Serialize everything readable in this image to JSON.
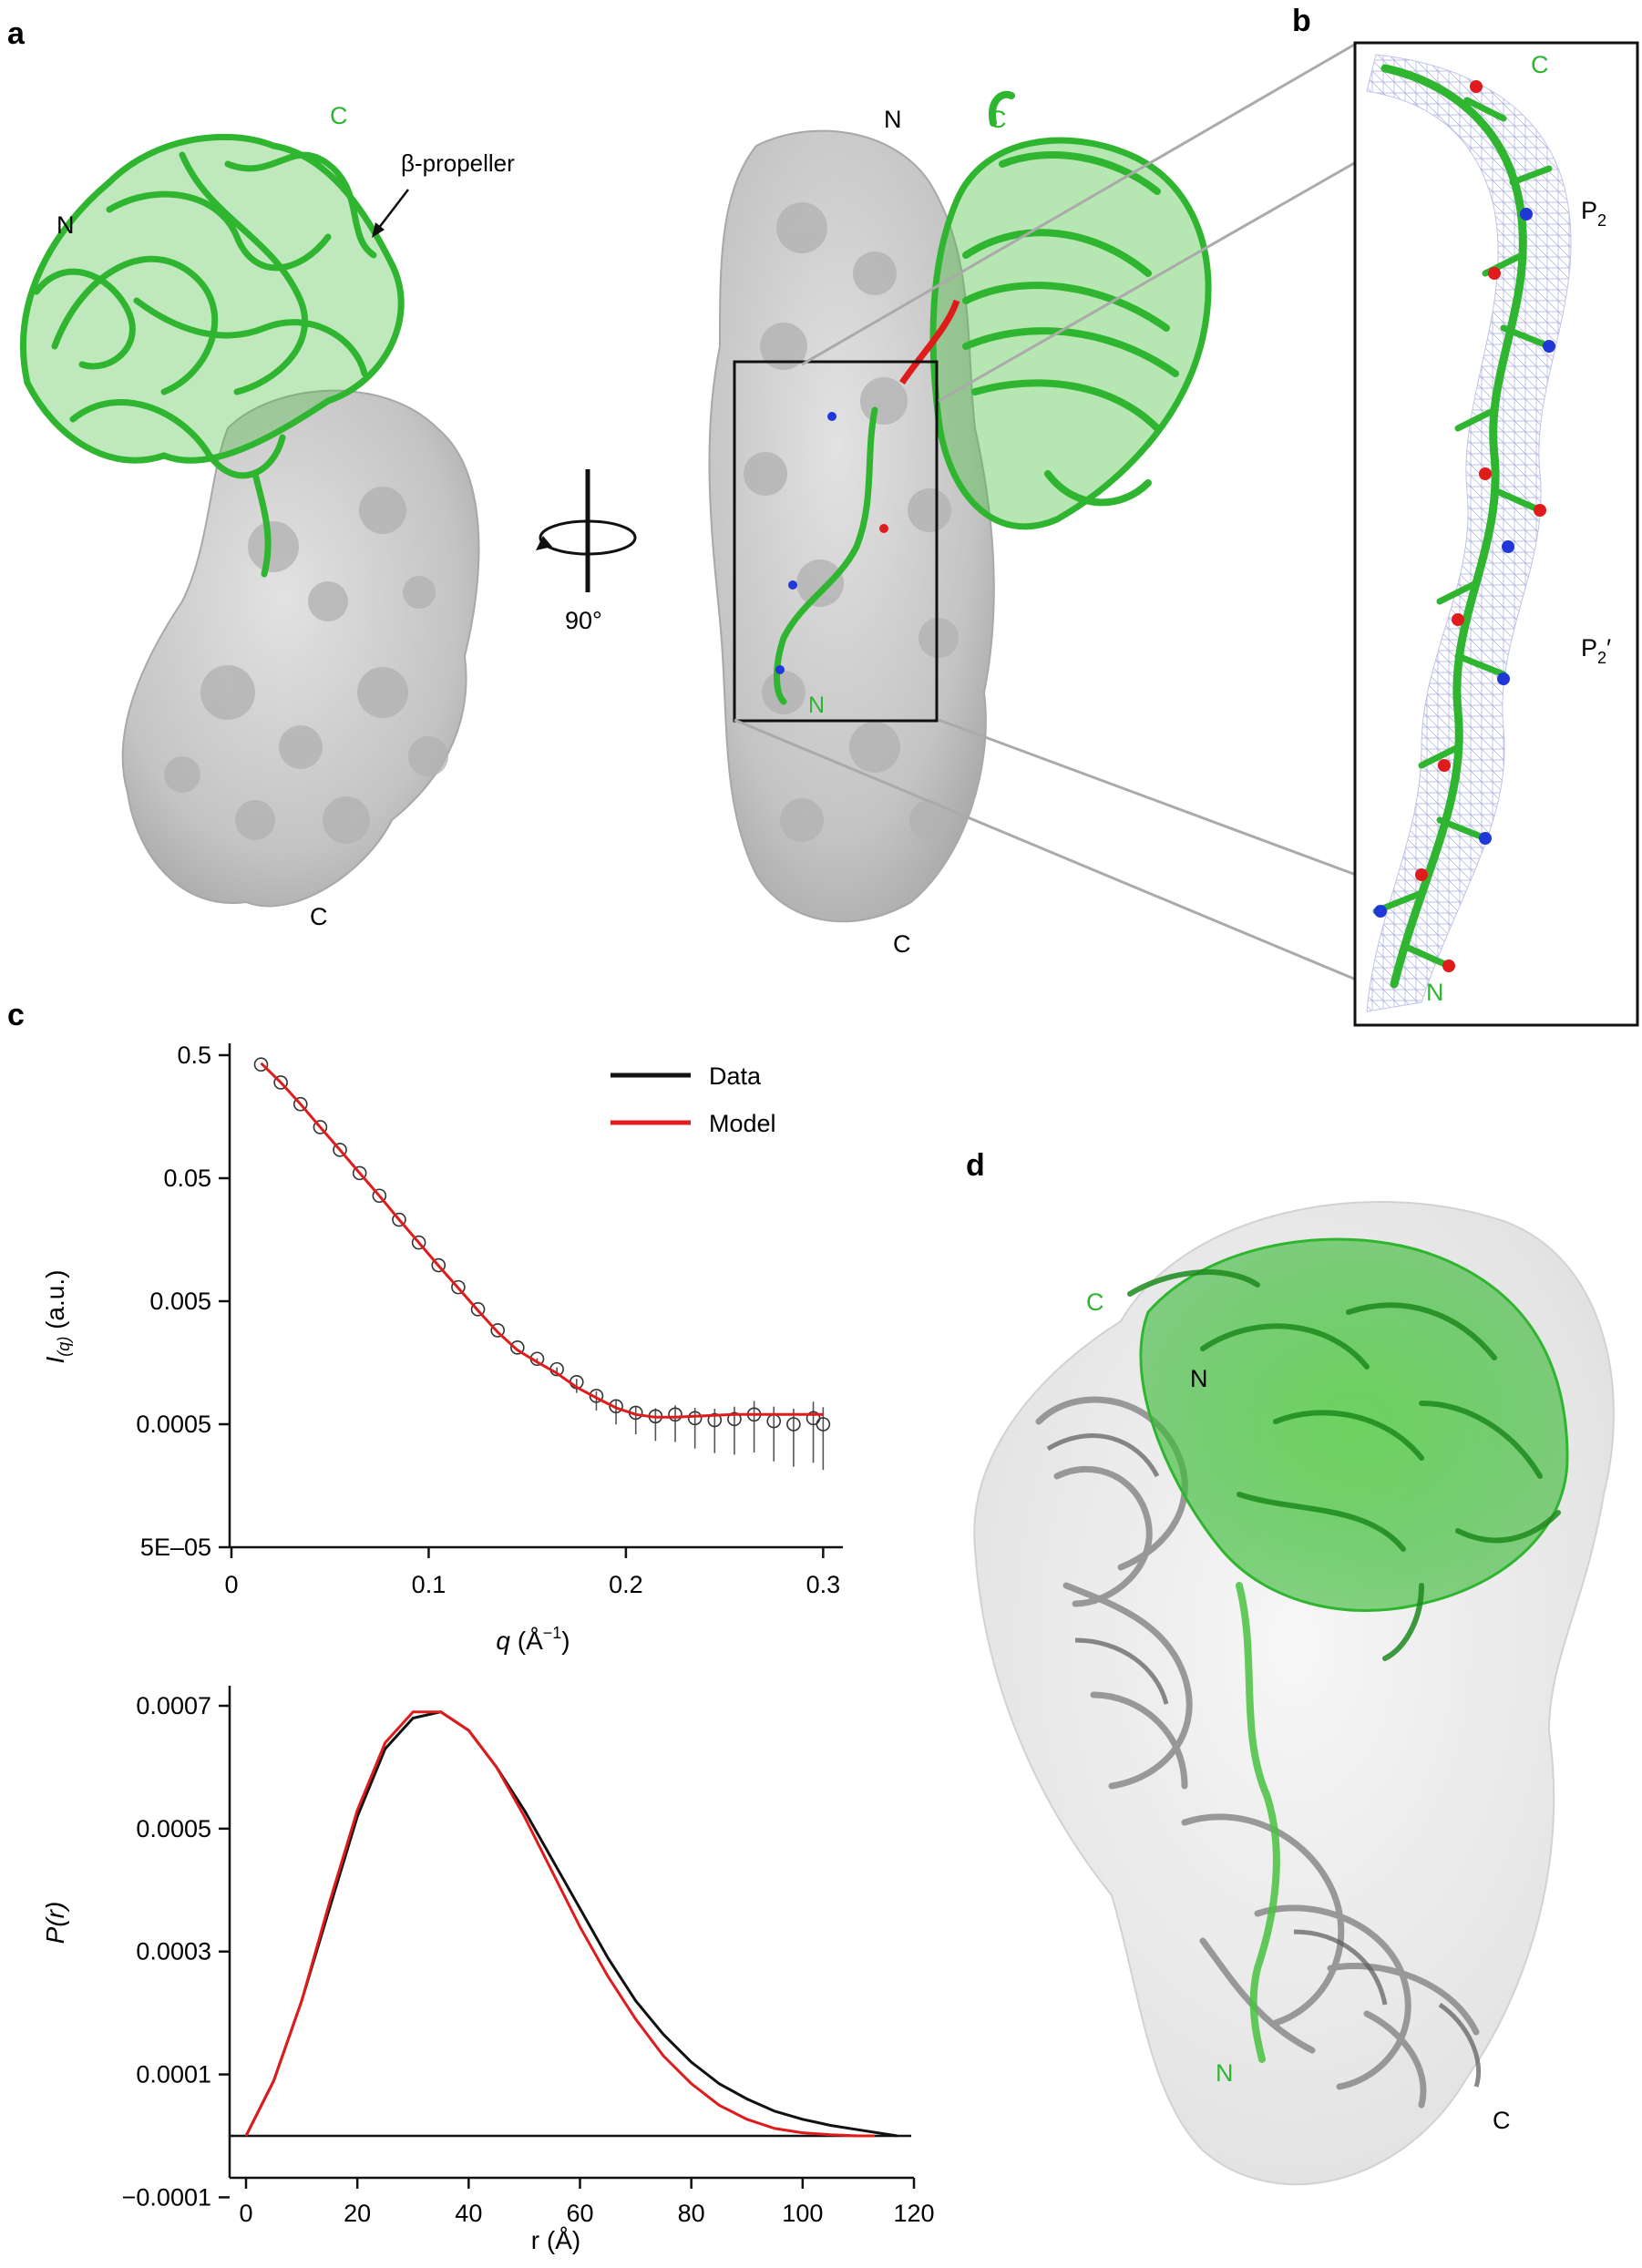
{
  "panels": {
    "a": {
      "letter": "a",
      "left_labels": {
        "n": "N",
        "c_top": "C",
        "c_bottom": "C",
        "propeller": "β-propeller"
      },
      "rotation": "90°",
      "right_labels": {
        "n": "N",
        "c_top": "C",
        "c_bottom": "C",
        "n_peptide": "N"
      }
    },
    "b": {
      "letter": "b",
      "labels": {
        "c": "C",
        "p2": "P",
        "p2_sub": "2",
        "p2p": "P",
        "p2p_sub": "2",
        "p2p_prime": "′",
        "n": "N"
      }
    },
    "c": {
      "letter": "c"
    },
    "d": {
      "letter": "d",
      "labels": {
        "c_green": "C",
        "n_grey": "N",
        "n_green": "N",
        "c_grey": "C"
      }
    }
  },
  "colors": {
    "green": "#2fb52f",
    "green_dark": "#1d8a1d",
    "red": "#e01b1b",
    "surface": "#c9c9c9",
    "surface_shadow": "#9a9a9a",
    "mesh": "#9aa0d8",
    "blue": "#2038d8"
  },
  "chart_data": [
    {
      "type": "scatter",
      "ylabel": "I(q) (a.u.)",
      "ylabel_main": "I",
      "ylabel_sub": "(q)",
      "ylabel_unit": " (a.u.)",
      "xlabel": "q (Å−1)",
      "xlabel_var": "q",
      "xlabel_unit": " (Å",
      "xlabel_sup": "−1",
      "xlabel_close": ")",
      "y_scale": "log",
      "xlim": [
        0,
        0.31
      ],
      "ylim": [
        5e-05,
        0.5
      ],
      "x_ticks": [
        "0",
        "0.1",
        "0.2",
        "0.3"
      ],
      "x_tick_values": [
        0,
        0.1,
        0.2,
        0.3
      ],
      "y_ticks": [
        "0.5",
        "0.05",
        "0.005",
        "0.0005",
        "5E–05"
      ],
      "y_tick_values": [
        0.5,
        0.05,
        0.005,
        0.0005,
        5e-05
      ],
      "legend": [
        "Data",
        "Model"
      ],
      "legend_position": "top-right",
      "series": [
        {
          "name": "Data",
          "x": [
            0.015,
            0.025,
            0.035,
            0.045,
            0.055,
            0.065,
            0.075,
            0.085,
            0.095,
            0.105,
            0.115,
            0.125,
            0.135,
            0.145,
            0.155,
            0.165,
            0.175,
            0.185,
            0.195,
            0.205,
            0.215,
            0.225,
            0.235,
            0.245,
            0.255,
            0.265,
            0.275,
            0.285,
            0.295,
            0.3
          ],
          "y": [
            0.42,
            0.3,
            0.2,
            0.13,
            0.085,
            0.055,
            0.036,
            0.023,
            0.015,
            0.0098,
            0.0065,
            0.0043,
            0.0029,
            0.0021,
            0.0017,
            0.0014,
            0.0011,
            0.00085,
            0.0007,
            0.00062,
            0.00058,
            0.0006,
            0.00056,
            0.00054,
            0.00055,
            0.0006,
            0.00053,
            0.0005,
            0.00056,
            0.0005
          ]
        },
        {
          "name": "Model",
          "x": [
            0.015,
            0.025,
            0.035,
            0.045,
            0.055,
            0.065,
            0.075,
            0.085,
            0.095,
            0.105,
            0.115,
            0.125,
            0.135,
            0.145,
            0.155,
            0.165,
            0.175,
            0.185,
            0.195,
            0.205,
            0.215,
            0.225,
            0.235,
            0.245,
            0.255,
            0.265,
            0.275,
            0.285,
            0.295,
            0.3
          ],
          "y": [
            0.43,
            0.3,
            0.2,
            0.13,
            0.085,
            0.055,
            0.036,
            0.023,
            0.015,
            0.0097,
            0.0064,
            0.0042,
            0.0028,
            0.002,
            0.0016,
            0.0013,
            0.001,
            0.00082,
            0.00068,
            0.0006,
            0.00057,
            0.00057,
            0.00058,
            0.00059,
            0.0006,
            0.0006,
            0.0006,
            0.0006,
            0.0006,
            0.0006
          ]
        }
      ]
    },
    {
      "type": "line",
      "ylabel": "P(r)",
      "xlabel": "r (Å)",
      "xlim": [
        -2,
        122
      ],
      "ylim": [
        -0.0001,
        0.0008
      ],
      "x_ticks": [
        "0",
        "20",
        "40",
        "60",
        "80",
        "100",
        "120"
      ],
      "x_tick_values": [
        0,
        20,
        40,
        60,
        80,
        100,
        120
      ],
      "y_ticks": [
        "0.0007",
        "0.0005",
        "0.0003",
        "0.0001",
        "−0.0001"
      ],
      "y_tick_values": [
        0.0007,
        0.0005,
        0.0003,
        0.0001,
        -0.0001
      ],
      "series": [
        {
          "name": "Data",
          "x": [
            0,
            5,
            10,
            15,
            20,
            25,
            30,
            35,
            40,
            45,
            50,
            55,
            60,
            65,
            70,
            75,
            80,
            85,
            90,
            95,
            100,
            105,
            110,
            117
          ],
          "y": [
            0.0,
            9e-05,
            0.00022,
            0.00037,
            0.00052,
            0.00063,
            0.00068,
            0.00069,
            0.00066,
            0.0006,
            0.00053,
            0.00045,
            0.00037,
            0.00029,
            0.00022,
            0.000165,
            0.00012,
            8.5e-05,
            6e-05,
            4e-05,
            2.7e-05,
            1.7e-05,
            1e-05,
            0.0
          ]
        },
        {
          "name": "Model",
          "x": [
            0,
            5,
            10,
            15,
            20,
            25,
            30,
            35,
            40,
            45,
            50,
            55,
            60,
            65,
            70,
            75,
            80,
            85,
            90,
            95,
            100,
            105,
            110,
            113
          ],
          "y": [
            0.0,
            9e-05,
            0.00022,
            0.00038,
            0.00053,
            0.00064,
            0.00069,
            0.00069,
            0.00066,
            0.0006,
            0.00052,
            0.00043,
            0.00034,
            0.00026,
            0.00019,
            0.00013,
            8.5e-05,
            5e-05,
            2.7e-05,
            1.2e-05,
            5e-06,
            2e-06,
            0.0,
            0.0
          ]
        }
      ]
    }
  ]
}
